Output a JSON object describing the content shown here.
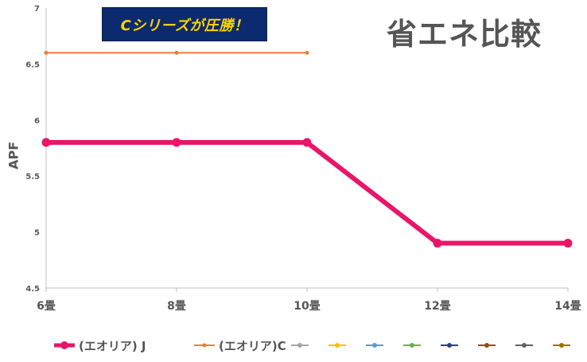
{
  "banner_text": "Cシリーズが圧勝！",
  "title": "省エネ比較",
  "chart_data": {
    "type": "line",
    "ylabel": "APF",
    "ylim": [
      4.5,
      7
    ],
    "yticks": [
      "7",
      "6.5",
      "6",
      "5.5",
      "5",
      "4.5"
    ],
    "categories": [
      "6畳",
      "8畳",
      "10畳",
      "12畳",
      "14畳"
    ],
    "series": [
      {
        "name": "(エオリア) J",
        "color": "#e8166a",
        "values": [
          5.8,
          5.8,
          5.8,
          4.9,
          4.9
        ]
      },
      {
        "name": "(エオリア)C",
        "color": "#ed7d31",
        "values": [
          6.6,
          6.6,
          6.6,
          null,
          null
        ]
      }
    ],
    "empty_legend_colors": [
      "#a5a5a5",
      "#ffc000",
      "#5b9bd5",
      "#70ad47",
      "#264478",
      "#9e480e",
      "#636363",
      "#997300"
    ],
    "legend_position": "bottom",
    "grid": false
  }
}
